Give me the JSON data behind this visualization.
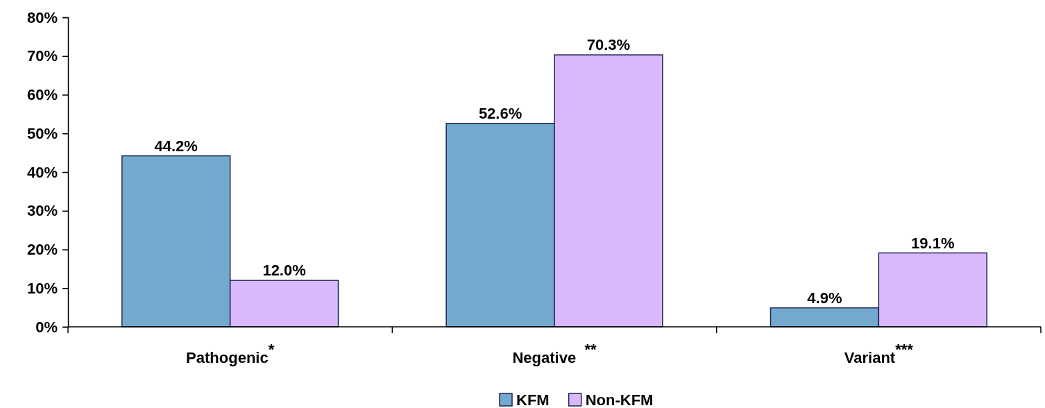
{
  "chart_data": {
    "type": "bar",
    "categories": [
      "Pathogenic$^{*}$",
      "Negative  $^{**}$",
      "Variant$^{***}$"
    ],
    "series": [
      {
        "name": "KFM",
        "color": "#74a9cf",
        "values": [
          44.2,
          52.6,
          4.9
        ],
        "value_labels": [
          "44.2%",
          "52.6%",
          "4.9%"
        ]
      },
      {
        "name": "Non-KFM",
        "color": "#d9b8fc",
        "values": [
          12.0,
          70.3,
          19.1
        ],
        "value_labels": [
          "12.0%",
          "70.3%",
          "19.1%"
        ]
      }
    ],
    "ylim": [
      0,
      80
    ],
    "yticks": [
      {
        "value": 0,
        "label": "0%"
      },
      {
        "value": 10,
        "label": "10%"
      },
      {
        "value": 20,
        "label": "20%"
      },
      {
        "value": 30,
        "label": "30%"
      },
      {
        "value": 40,
        "label": "40%"
      },
      {
        "value": 50,
        "label": "50%"
      },
      {
        "value": 60,
        "label": "60%"
      },
      {
        "value": 70,
        "label": "70%"
      },
      {
        "value": 80,
        "label": "80%"
      }
    ],
    "grid": false,
    "legend": "bottom"
  }
}
